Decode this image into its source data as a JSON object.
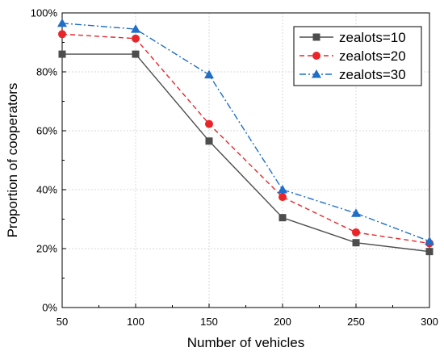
{
  "chart_data": {
    "type": "line",
    "title": "",
    "xlabel": "Number of vehicles",
    "ylabel": "Proportion of cooperators",
    "x": [
      50,
      100,
      150,
      200,
      250,
      300
    ],
    "xticks": [
      "50",
      "100",
      "150",
      "200",
      "250",
      "300"
    ],
    "xlim": [
      50,
      300
    ],
    "ylim": [
      0,
      100
    ],
    "yticks": [
      "0%",
      "20%",
      "40%",
      "60%",
      "80%",
      "100%"
    ],
    "grid": true,
    "legend_position": "top-right",
    "series": [
      {
        "name": "zealots=10",
        "values": [
          86,
          86,
          56.5,
          30.5,
          22,
          19
        ],
        "color": "#4d4d4d",
        "marker": "square",
        "dash": "solid"
      },
      {
        "name": "zealots=20",
        "values": [
          92.8,
          91.3,
          62.3,
          37.5,
          25.5,
          21.8
        ],
        "color": "#e8262a",
        "marker": "circle",
        "dash": "dashed"
      },
      {
        "name": "zealots=30",
        "values": [
          96.5,
          94.5,
          79,
          40,
          32,
          22.5
        ],
        "color": "#1f6ec8",
        "marker": "triangle",
        "dash": "dashdot"
      }
    ]
  }
}
